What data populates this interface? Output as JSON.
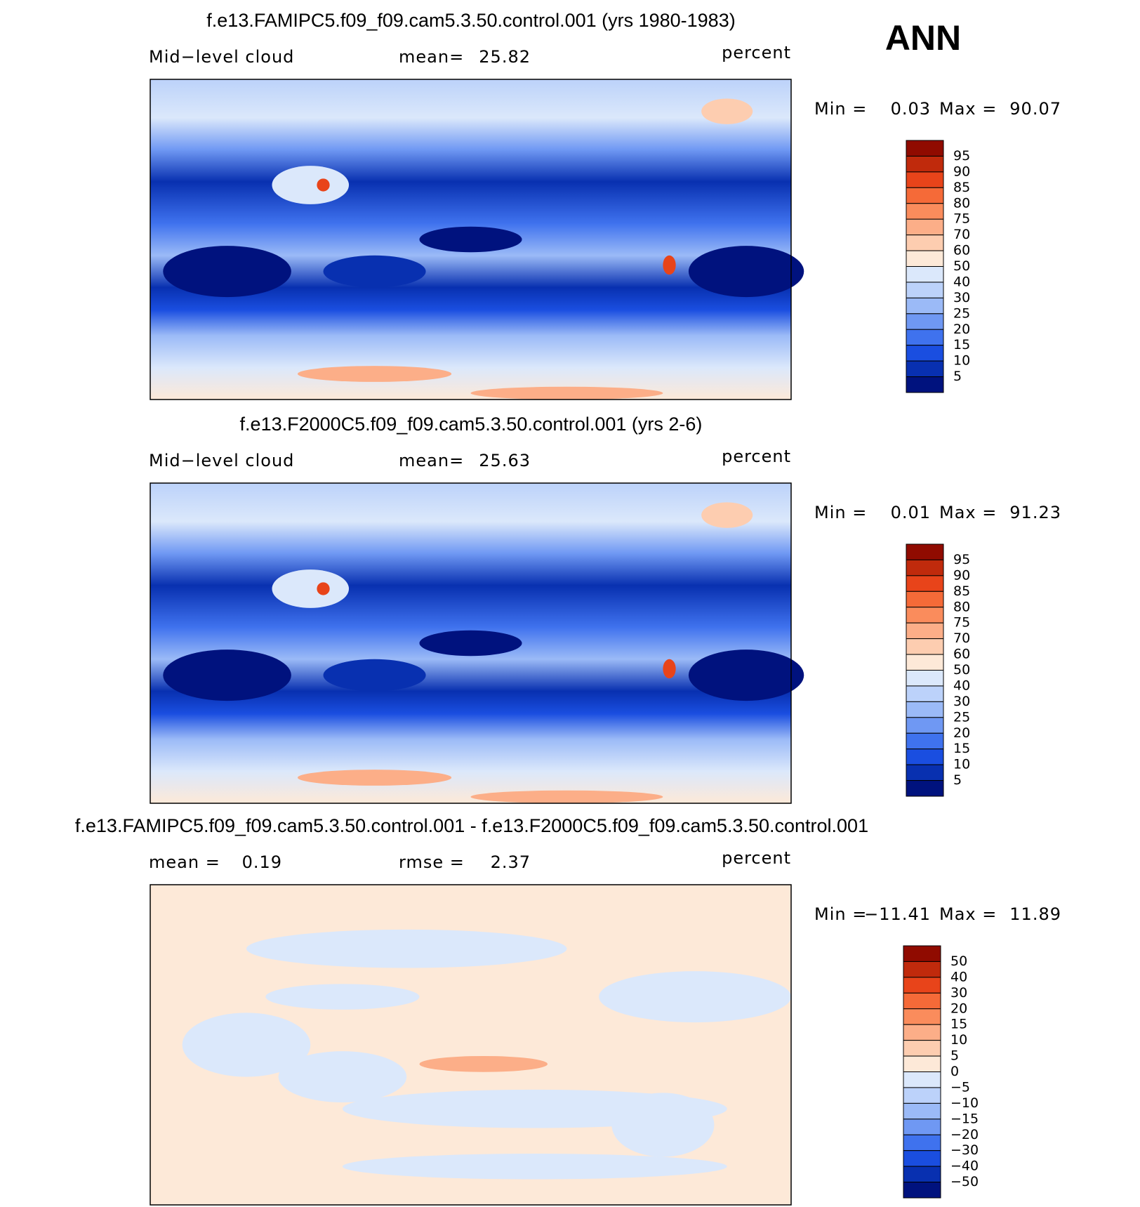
{
  "figure_label": "ANN",
  "panels": [
    {
      "title": "f.e13.FAMIPC5.f09_f09.cam5.3.50.control.001 (yrs 1980-1983)",
      "labels": [
        {
          "text": "Mid−level cloud"
        },
        {
          "text": "mean=",
          "value": "25.82"
        }
      ],
      "units": "percent",
      "min_label": "Min =",
      "min": "0.03",
      "max_label": "Max =",
      "max": "90.07",
      "colorbar": {
        "labels": [
          "95",
          "90",
          "85",
          "80",
          "75",
          "70",
          "60",
          "50",
          "40",
          "30",
          "25",
          "20",
          "15",
          "10",
          "5"
        ],
        "colors": [
          "#900b00",
          "#c02a0c",
          "#e8441a",
          "#f56a38",
          "#fa8c5c",
          "#fcae88",
          "#fdcdb0",
          "#fde9d8",
          "#dbe8fb",
          "#bcd2fa",
          "#9bbaf7",
          "#6f98f3",
          "#3f72ee",
          "#1a4ee0",
          "#0830b0",
          "#00127e"
        ]
      },
      "map": "cloud"
    },
    {
      "title": "f.e13.F2000C5.f09_f09.cam5.3.50.control.001 (yrs 2-6)",
      "labels": [
        {
          "text": "Mid−level cloud"
        },
        {
          "text": "mean=",
          "value": "25.63"
        }
      ],
      "units": "percent",
      "min_label": "Min =",
      "min": "0.01",
      "max_label": "Max =",
      "max": "91.23",
      "colorbar": {
        "labels": [
          "95",
          "90",
          "85",
          "80",
          "75",
          "70",
          "60",
          "50",
          "40",
          "30",
          "25",
          "20",
          "15",
          "10",
          "5"
        ],
        "colors": [
          "#900b00",
          "#c02a0c",
          "#e8441a",
          "#f56a38",
          "#fa8c5c",
          "#fcae88",
          "#fdcdb0",
          "#fde9d8",
          "#dbe8fb",
          "#bcd2fa",
          "#9bbaf7",
          "#6f98f3",
          "#3f72ee",
          "#1a4ee0",
          "#0830b0",
          "#00127e"
        ]
      },
      "map": "cloud"
    },
    {
      "title": "f.e13.FAMIPC5.f09_f09.cam5.3.50.control.001 - f.e13.F2000C5.f09_f09.cam5.3.50.control.001",
      "labels": [
        {
          "text": "mean =",
          "value": "0.19"
        },
        {
          "text": "rmse =",
          "value": "2.37"
        }
      ],
      "units": "percent",
      "min_label": "Min =",
      "min": "−11.41",
      "max_label": "Max =",
      "max": "11.89",
      "colorbar": {
        "labels": [
          "50",
          "40",
          "30",
          "20",
          "15",
          "10",
          "5",
          "0",
          "−5",
          "−10",
          "−15",
          "−20",
          "−30",
          "−40",
          "−50"
        ],
        "colors": [
          "#900b00",
          "#c02a0c",
          "#e8441a",
          "#f56a38",
          "#fa8c5c",
          "#fcae88",
          "#fdcdb0",
          "#fde9d8",
          "#dbe8fb",
          "#bcd2fa",
          "#9bbaf7",
          "#6f98f3",
          "#3f72ee",
          "#1a4ee0",
          "#0830b0",
          "#00127e"
        ]
      },
      "map": "diff"
    }
  ]
}
